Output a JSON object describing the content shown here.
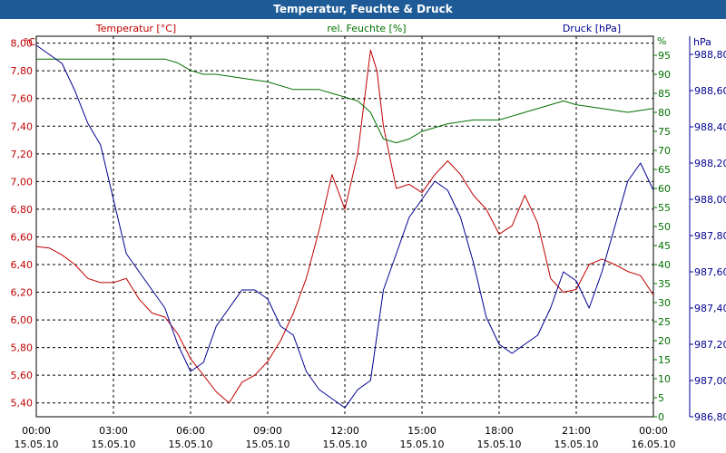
{
  "window": {
    "title": "Temperatur, Feuchte & Druck"
  },
  "chart_data": {
    "type": "line",
    "title": "Temperatur, Feuchte & Druck",
    "grid": true,
    "x_ticks": [
      {
        "time": "00:00",
        "date": "15.05.10"
      },
      {
        "time": "03:00",
        "date": "15.05.10"
      },
      {
        "time": "06:00",
        "date": "15.05.10"
      },
      {
        "time": "09:00",
        "date": "15.05.10"
      },
      {
        "time": "12:00",
        "date": "15.05.10"
      },
      {
        "time": "15:00",
        "date": "15.05.10"
      },
      {
        "time": "18:00",
        "date": "15.05.10"
      },
      {
        "time": "21:00",
        "date": "15.05.10"
      },
      {
        "time": "00:00",
        "date": "16.05.10"
      }
    ],
    "xlim_hours": [
      0,
      24
    ],
    "axes": {
      "temperature": {
        "label": "Temperatur [°C]",
        "unit": "°C",
        "color": "#c00000",
        "ylim": [
          5.3,
          8.05
        ],
        "ticks": [
          "5,40",
          "5,60",
          "5,80",
          "6,00",
          "6,20",
          "6,40",
          "6,60",
          "6,80",
          "7,00",
          "7,20",
          "7,40",
          "7,60",
          "7,80",
          "8,00"
        ]
      },
      "humidity": {
        "label": "rel. Feuchte [%]",
        "unit": "%",
        "color": "#007000",
        "ylim": [
          0,
          100
        ],
        "ticks": [
          "0",
          "5",
          "10",
          "15",
          "20",
          "25",
          "30",
          "35",
          "40",
          "45",
          "50",
          "55",
          "60",
          "65",
          "70",
          "75",
          "80",
          "85",
          "90",
          "95"
        ]
      },
      "pressure": {
        "label": "Druck [hPa]",
        "unit": "hPa",
        "color": "#000090",
        "ylim": [
          986.8,
          988.9
        ],
        "ticks": [
          "986,80",
          "987,00",
          "987,20",
          "987,40",
          "987,60",
          "987,80",
          "988,00",
          "988,20",
          "988,40",
          "988,60",
          "988,80"
        ]
      }
    },
    "series": [
      {
        "name": "Temperatur [°C]",
        "axis": "temperature",
        "color": "#c00000",
        "x": [
          0,
          0.5,
          1,
          1.5,
          2,
          2.5,
          3,
          3.5,
          4,
          4.5,
          5,
          5.5,
          6,
          6.5,
          7,
          7.5,
          8,
          8.5,
          9,
          9.5,
          10,
          10.5,
          11,
          11.5,
          12,
          12.5,
          13,
          13.25,
          13.5,
          14,
          14.5,
          15,
          15.5,
          16,
          16.5,
          17,
          17.5,
          18,
          18.5,
          19,
          19.5,
          20,
          20.5,
          21,
          21.5,
          22,
          22.5,
          23,
          23.5,
          24
        ],
        "y": [
          6.53,
          6.52,
          6.47,
          6.4,
          6.3,
          6.27,
          6.27,
          6.3,
          6.15,
          6.05,
          6.02,
          5.9,
          5.72,
          5.6,
          5.48,
          5.4,
          5.55,
          5.6,
          5.7,
          5.85,
          6.05,
          6.3,
          6.65,
          7.05,
          6.8,
          7.2,
          7.95,
          7.8,
          7.4,
          6.95,
          6.98,
          6.92,
          7.05,
          7.15,
          7.05,
          6.9,
          6.8,
          6.62,
          6.68,
          6.9,
          6.7,
          6.3,
          6.2,
          6.22,
          6.4,
          6.44,
          6.4,
          6.35,
          6.32,
          6.18
        ]
      },
      {
        "name": "rel. Feuchte [%]",
        "axis": "humidity",
        "color": "#007000",
        "x": [
          0,
          1,
          2,
          3,
          4,
          5,
          5.5,
          6,
          6.5,
          7,
          8,
          9,
          10,
          10.5,
          11,
          11.5,
          12,
          12.5,
          13,
          13.5,
          14,
          14.5,
          15,
          16,
          17,
          18,
          18.5,
          19,
          20,
          20.5,
          21,
          22,
          23,
          24
        ],
        "y": [
          94,
          94,
          94,
          94,
          94,
          94,
          93,
          91,
          90,
          90,
          89,
          88,
          86,
          86,
          86,
          85,
          84,
          83,
          80,
          73,
          72,
          73,
          75,
          77,
          78,
          78,
          79,
          80,
          82,
          83,
          82,
          81,
          80,
          81
        ]
      },
      {
        "name": "Druck [hPa]",
        "axis": "pressure",
        "color": "#000090",
        "x": [
          0,
          0.5,
          1,
          1.5,
          2,
          2.5,
          3,
          3.5,
          4,
          4.5,
          5,
          5.5,
          6,
          6.5,
          7,
          7.5,
          8,
          8.5,
          9,
          9.5,
          10,
          10.5,
          11,
          11.5,
          12,
          12.5,
          13,
          13.5,
          14,
          14.5,
          15,
          15.5,
          16,
          16.5,
          17,
          17.5,
          18,
          18.5,
          19,
          19.5,
          20,
          20.5,
          21,
          21.5,
          22,
          22.5,
          23,
          23.5,
          24
        ],
        "y": [
          988.85,
          988.8,
          988.75,
          988.6,
          988.42,
          988.3,
          988.0,
          987.7,
          987.6,
          987.5,
          987.4,
          987.2,
          987.05,
          987.1,
          987.3,
          987.4,
          987.5,
          987.5,
          987.45,
          987.3,
          987.25,
          987.05,
          986.95,
          986.9,
          986.85,
          986.95,
          987.0,
          987.5,
          987.7,
          987.9,
          988.0,
          988.1,
          988.05,
          987.9,
          987.65,
          987.35,
          987.2,
          987.15,
          987.2,
          987.25,
          987.4,
          987.6,
          987.55,
          987.4,
          987.6,
          987.85,
          988.1,
          988.2,
          988.05
        ]
      }
    ]
  }
}
